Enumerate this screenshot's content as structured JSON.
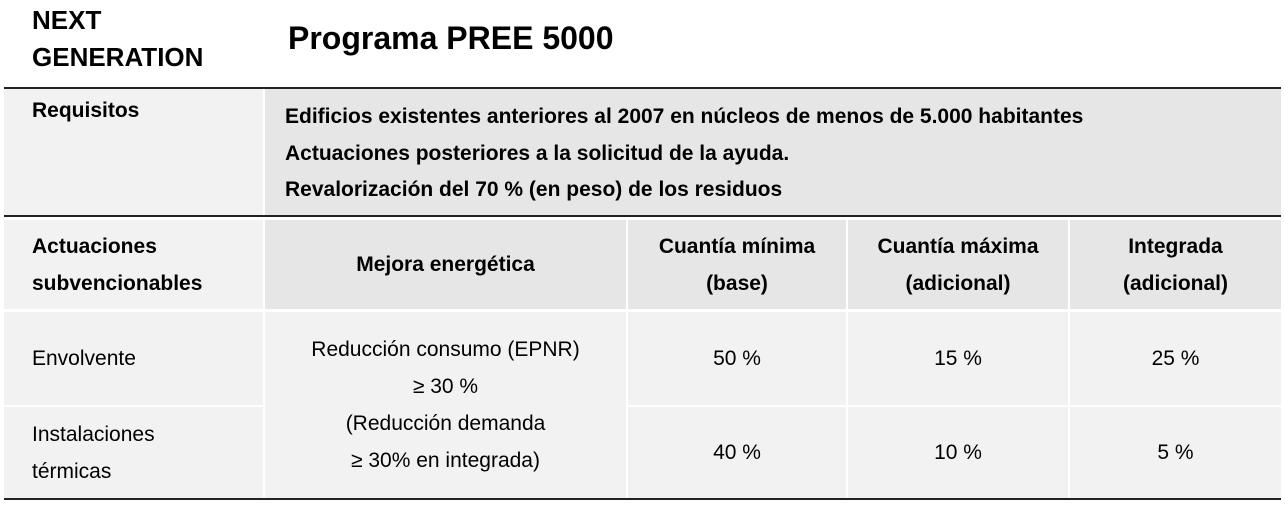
{
  "header": {
    "brand_line1": "NEXT",
    "brand_line2": "GENERATION",
    "title": "Programa PREE 5000"
  },
  "requisitos": {
    "label": "Requisitos",
    "lines": [
      "Edificios existentes anteriores al 2007 en núcleos de menos de 5.000 habitantes",
      "Actuaciones posteriores a la solicitud de la ayuda.",
      "Revalorización del 70 % (en peso) de los residuos"
    ]
  },
  "table": {
    "headers": {
      "actuaciones": [
        "Actuaciones",
        "subvencionables"
      ],
      "mejora": "Mejora energética",
      "minima": [
        "Cuantía mínima",
        "(base)"
      ],
      "maxima": [
        "Cuantía máxima",
        "(adicional)"
      ],
      "integrada": [
        "Integrada",
        "(adicional)"
      ]
    },
    "mejora_text": [
      "Reducción consumo (EPNR)",
      "≥ 30 %",
      "(Reducción demanda",
      "≥ 30% en integrada)"
    ],
    "rows": [
      {
        "actuacion": [
          "Envolvente"
        ],
        "minima": "50 %",
        "maxima": "15 %",
        "integrada": "25 %"
      },
      {
        "actuacion": [
          "Instalaciones",
          "térmicas"
        ],
        "minima": "40 %",
        "maxima": "10 %",
        "integrada": "5 %"
      }
    ]
  },
  "colors": {
    "cell_light": "#f2f2f2",
    "cell_dark": "#e6e6e6",
    "rule": "#222222"
  }
}
